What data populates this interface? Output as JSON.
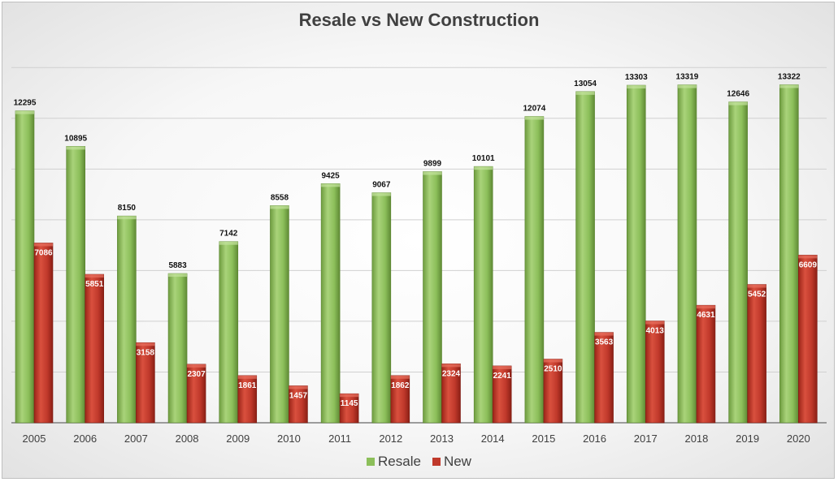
{
  "chart_data": {
    "type": "bar",
    "title": "Resale vs New Construction",
    "xlabel": "",
    "ylabel": "",
    "ylim": [
      0,
      15000
    ],
    "grid": true,
    "legend_position": "bottom",
    "categories": [
      "2005",
      "2006",
      "2007",
      "2008",
      "2009",
      "2010",
      "2011",
      "2012",
      "2013",
      "2014",
      "2015",
      "2016",
      "2017",
      "2018",
      "2019",
      "2020"
    ],
    "series": [
      {
        "name": "Resale",
        "color": "#8cbf5a",
        "values": [
          12295,
          10895,
          8150,
          5883,
          7142,
          8558,
          9425,
          9067,
          9899,
          10101,
          12074,
          13054,
          13303,
          13319,
          12646,
          13322
        ]
      },
      {
        "name": "New",
        "color": "#c0392b",
        "values": [
          7086,
          5851,
          3158,
          2307,
          1861,
          1457,
          1145,
          1862,
          2324,
          2241,
          2510,
          3563,
          4013,
          4631,
          5452,
          6609
        ]
      }
    ]
  }
}
